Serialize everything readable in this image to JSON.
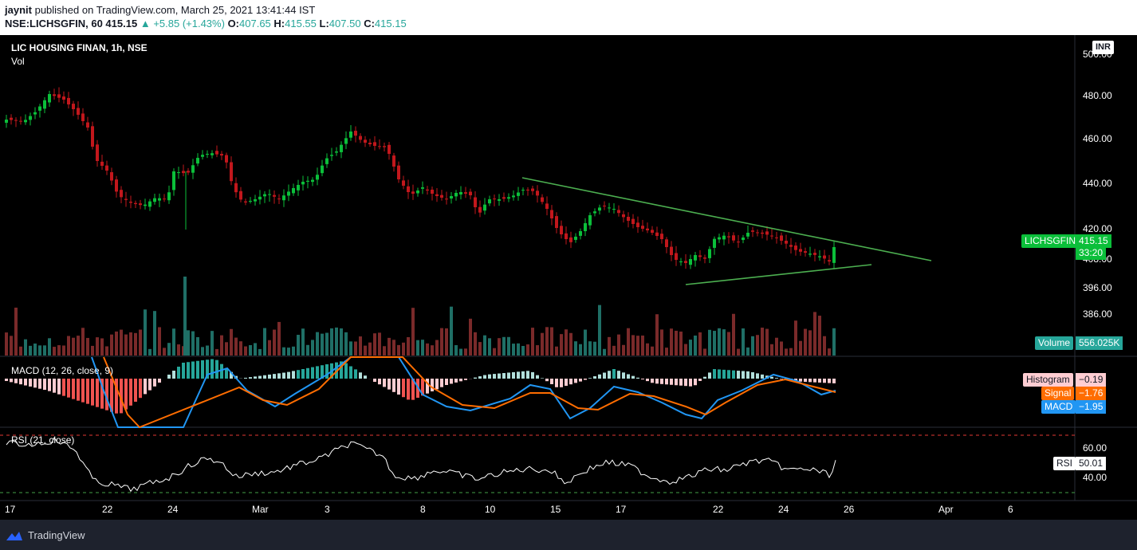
{
  "header": {
    "user": "jaynit",
    "published": "published on TradingView.com, March 25, 2021 13:41:44 IST",
    "symbol": "NSE:LICHSGFIN, 60",
    "last": "415.15",
    "change": "+5.85 (+1.43%)",
    "o_label": "O:",
    "o": "407.65",
    "h_label": "H:",
    "h": "415.55",
    "l_label": "L:",
    "l": "407.50",
    "c_label": "C:",
    "c": "415.15"
  },
  "chart": {
    "title": "LIC HOUSING FINAN, 1h, NSE",
    "vol_label": "Vol",
    "currency": "INR",
    "price_ticks": [
      "500.00",
      "480.00",
      "460.00",
      "440.00",
      "420.00",
      "408.00",
      "396.00",
      "386.00"
    ],
    "price_tag": {
      "label": "LICHSGFIN",
      "value": "415.15",
      "timer": "33:20"
    },
    "volume_tag": {
      "label": "Volume",
      "value": "556.025K"
    },
    "colors": {
      "up": "#26a69a",
      "down": "#ef5350",
      "candle_up": "#0bbf3a",
      "candle_down": "#c2171c",
      "trend": "#4caf50"
    }
  },
  "macd": {
    "title": "MACD (12, 26, close, 9)",
    "histogram": {
      "label": "Histogram",
      "value": "−0.19"
    },
    "signal": {
      "label": "Signal",
      "value": "−1.76"
    },
    "macd": {
      "label": "MACD",
      "value": "−1.95"
    }
  },
  "rsi": {
    "title": "RSI (21, close)",
    "label": "RSI",
    "value": "50.01",
    "ticks": [
      "60.00",
      "40.00"
    ]
  },
  "x_axis": [
    "17",
    "22",
    "24",
    "Mar",
    "3",
    "8",
    "10",
    "15",
    "17",
    "22",
    "24",
    "26",
    "Apr",
    "6"
  ],
  "footer": {
    "brand": "TradingView"
  }
}
